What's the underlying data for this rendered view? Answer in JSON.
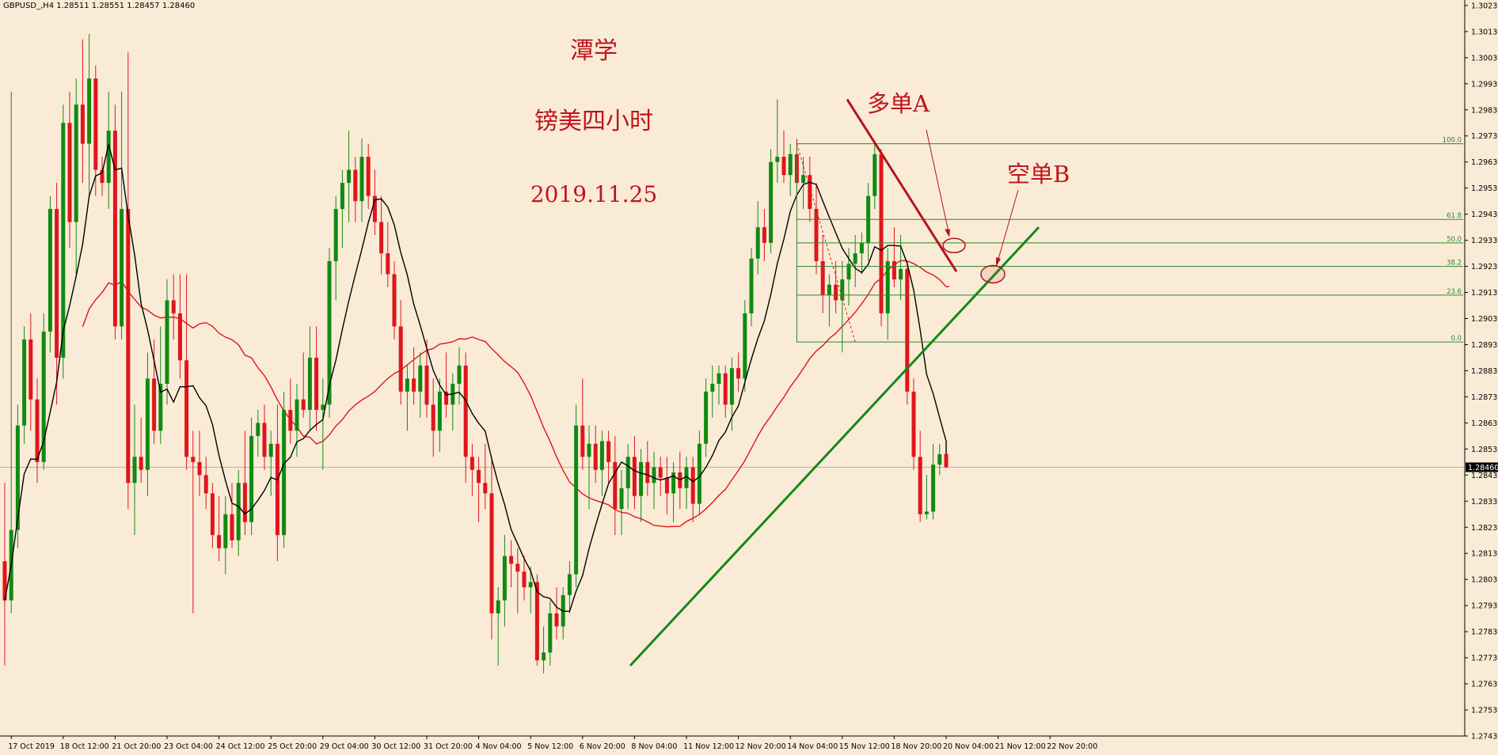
{
  "header": {
    "symbol_info": "GBPUSD_,H4  1.28511 1.28551 1.28457 1.28460"
  },
  "annotations": {
    "author": "潭学",
    "title": "镑美四小时",
    "date": "2019.11.25",
    "label_a": "多单A",
    "label_b": "空单B"
  },
  "colors": {
    "background": "#faebd7",
    "bull_candle": "#118a11",
    "bear_candle": "#e0151b",
    "ma_fast": "#000000",
    "ma_slow": "#e0151b",
    "trendline_up": "#15881b",
    "trendline_down": "#b3141b",
    "fib_lines": "#2a8a2a",
    "price_marker": "#000000"
  },
  "chart_data": {
    "type": "candlestick",
    "instrument": "GBPUSD_",
    "timeframe": "H4",
    "current_price_label": "1.28460",
    "ylim": [
      1.2743,
      1.3023
    ],
    "y_ticks": [
      "1.30230",
      "1.30130",
      "1.30030",
      "1.29930",
      "1.29830",
      "1.29730",
      "1.29630",
      "1.29530",
      "1.29430",
      "1.29330",
      "1.29230",
      "1.29130",
      "1.29030",
      "1.28930",
      "1.28830",
      "1.28730",
      "1.28630",
      "1.28530",
      "1.28430",
      "1.28330",
      "1.28230",
      "1.28130",
      "1.28030",
      "1.27930",
      "1.27830",
      "1.27730",
      "1.27630",
      "1.27530",
      "1.27430"
    ],
    "x_ticks": [
      {
        "label": "17 Oct 2019",
        "bar": 1
      },
      {
        "label": "18 Oct 12:00",
        "bar": 9
      },
      {
        "label": "21 Oct 20:00",
        "bar": 17
      },
      {
        "label": "23 Oct 04:00",
        "bar": 25
      },
      {
        "label": "24 Oct 12:00",
        "bar": 33
      },
      {
        "label": "25 Oct 20:00",
        "bar": 41
      },
      {
        "label": "29 Oct 04:00",
        "bar": 49
      },
      {
        "label": "30 Oct 12:00",
        "bar": 57
      },
      {
        "label": "31 Oct 20:00",
        "bar": 65
      },
      {
        "label": "4 Nov 04:00",
        "bar": 73
      },
      {
        "label": "5 Nov 12:00",
        "bar": 81
      },
      {
        "label": "6 Nov 20:00",
        "bar": 89
      },
      {
        "label": "8 Nov 04:00",
        "bar": 97
      },
      {
        "label": "11 Nov 12:00",
        "bar": 105
      },
      {
        "label": "12 Nov 20:00",
        "bar": 113
      },
      {
        "label": "14 Nov 04:00",
        "bar": 121
      },
      {
        "label": "15 Nov 12:00",
        "bar": 129
      },
      {
        "label": "18 Nov 20:00",
        "bar": 137
      },
      {
        "label": "20 Nov 04:00",
        "bar": 145
      },
      {
        "label": "21 Nov 12:00",
        "bar": 153
      },
      {
        "label": "22 Nov 20:00",
        "bar": 161
      }
    ],
    "candles": [
      {
        "o": 1.281,
        "h": 1.284,
        "l": 1.277,
        "c": 1.2795
      },
      {
        "o": 1.2795,
        "h": 1.299,
        "l": 1.279,
        "c": 1.2822
      },
      {
        "o": 1.2822,
        "h": 1.287,
        "l": 1.2815,
        "c": 1.2862
      },
      {
        "o": 1.2862,
        "h": 1.29,
        "l": 1.2855,
        "c": 1.2895
      },
      {
        "o": 1.2895,
        "h": 1.2905,
        "l": 1.286,
        "c": 1.2872
      },
      {
        "o": 1.2872,
        "h": 1.288,
        "l": 1.284,
        "c": 1.2848
      },
      {
        "o": 1.2848,
        "h": 1.2905,
        "l": 1.2845,
        "c": 1.2898
      },
      {
        "o": 1.2898,
        "h": 1.295,
        "l": 1.289,
        "c": 1.2945
      },
      {
        "o": 1.2945,
        "h": 1.2955,
        "l": 1.287,
        "c": 1.2888
      },
      {
        "o": 1.2888,
        "h": 1.2985,
        "l": 1.288,
        "c": 1.2978
      },
      {
        "o": 1.2978,
        "h": 1.299,
        "l": 1.293,
        "c": 1.294
      },
      {
        "o": 1.294,
        "h": 1.2995,
        "l": 1.292,
        "c": 1.2985
      },
      {
        "o": 1.2985,
        "h": 1.301,
        "l": 1.2955,
        "c": 1.297
      },
      {
        "o": 1.297,
        "h": 1.3012,
        "l": 1.295,
        "c": 1.2995
      },
      {
        "o": 1.2995,
        "h": 1.3,
        "l": 1.295,
        "c": 1.296
      },
      {
        "o": 1.296,
        "h": 1.2965,
        "l": 1.295,
        "c": 1.2955
      },
      {
        "o": 1.2955,
        "h": 1.299,
        "l": 1.2945,
        "c": 1.2975
      },
      {
        "o": 1.2975,
        "h": 1.2985,
        "l": 1.2895,
        "c": 1.29
      },
      {
        "o": 1.29,
        "h": 1.299,
        "l": 1.2895,
        "c": 1.2945
      },
      {
        "o": 1.2945,
        "h": 1.3005,
        "l": 1.283,
        "c": 1.284
      },
      {
        "o": 1.284,
        "h": 1.287,
        "l": 1.282,
        "c": 1.285
      },
      {
        "o": 1.285,
        "h": 1.2865,
        "l": 1.284,
        "c": 1.2845
      },
      {
        "o": 1.2845,
        "h": 1.289,
        "l": 1.2835,
        "c": 1.288
      },
      {
        "o": 1.288,
        "h": 1.2895,
        "l": 1.2855,
        "c": 1.286
      },
      {
        "o": 1.286,
        "h": 1.29,
        "l": 1.2855,
        "c": 1.2878
      },
      {
        "o": 1.2878,
        "h": 1.2918,
        "l": 1.287,
        "c": 1.291
      },
      {
        "o": 1.291,
        "h": 1.292,
        "l": 1.2895,
        "c": 1.2905
      },
      {
        "o": 1.2905,
        "h": 1.292,
        "l": 1.288,
        "c": 1.2887
      },
      {
        "o": 1.2887,
        "h": 1.292,
        "l": 1.2845,
        "c": 1.285
      },
      {
        "o": 1.285,
        "h": 1.286,
        "l": 1.279,
        "c": 1.2848
      },
      {
        "o": 1.2848,
        "h": 1.286,
        "l": 1.2835,
        "c": 1.2843
      },
      {
        "o": 1.2843,
        "h": 1.285,
        "l": 1.283,
        "c": 1.2836
      },
      {
        "o": 1.2836,
        "h": 1.284,
        "l": 1.2815,
        "c": 1.282
      },
      {
        "o": 1.282,
        "h": 1.2835,
        "l": 1.281,
        "c": 1.2815
      },
      {
        "o": 1.2815,
        "h": 1.2835,
        "l": 1.2805,
        "c": 1.2828
      },
      {
        "o": 1.2828,
        "h": 1.284,
        "l": 1.2815,
        "c": 1.2818
      },
      {
        "o": 1.2818,
        "h": 1.2845,
        "l": 1.2812,
        "c": 1.284
      },
      {
        "o": 1.284,
        "h": 1.286,
        "l": 1.282,
        "c": 1.2825
      },
      {
        "o": 1.2825,
        "h": 1.2865,
        "l": 1.282,
        "c": 1.2858
      },
      {
        "o": 1.2858,
        "h": 1.2868,
        "l": 1.285,
        "c": 1.2863
      },
      {
        "o": 1.2863,
        "h": 1.287,
        "l": 1.2845,
        "c": 1.285
      },
      {
        "o": 1.285,
        "h": 1.286,
        "l": 1.2835,
        "c": 1.2855
      },
      {
        "o": 1.2855,
        "h": 1.287,
        "l": 1.281,
        "c": 1.282
      },
      {
        "o": 1.282,
        "h": 1.2875,
        "l": 1.2815,
        "c": 1.2868
      },
      {
        "o": 1.2868,
        "h": 1.288,
        "l": 1.2855,
        "c": 1.286
      },
      {
        "o": 1.286,
        "h": 1.2878,
        "l": 1.285,
        "c": 1.2872
      },
      {
        "o": 1.2872,
        "h": 1.289,
        "l": 1.2865,
        "c": 1.2868
      },
      {
        "o": 1.2868,
        "h": 1.29,
        "l": 1.286,
        "c": 1.2888
      },
      {
        "o": 1.2888,
        "h": 1.29,
        "l": 1.286,
        "c": 1.2868
      },
      {
        "o": 1.2868,
        "h": 1.288,
        "l": 1.2845,
        "c": 1.287
      },
      {
        "o": 1.287,
        "h": 1.293,
        "l": 1.2865,
        "c": 1.2925
      },
      {
        "o": 1.2925,
        "h": 1.295,
        "l": 1.291,
        "c": 1.2945
      },
      {
        "o": 1.2945,
        "h": 1.296,
        "l": 1.293,
        "c": 1.2955
      },
      {
        "o": 1.2955,
        "h": 1.2975,
        "l": 1.294,
        "c": 1.296
      },
      {
        "o": 1.296,
        "h": 1.2965,
        "l": 1.294,
        "c": 1.2948
      },
      {
        "o": 1.2948,
        "h": 1.2972,
        "l": 1.294,
        "c": 1.2965
      },
      {
        "o": 1.2965,
        "h": 1.297,
        "l": 1.2945,
        "c": 1.295
      },
      {
        "o": 1.295,
        "h": 1.296,
        "l": 1.2935,
        "c": 1.294
      },
      {
        "o": 1.294,
        "h": 1.295,
        "l": 1.292,
        "c": 1.2928
      },
      {
        "o": 1.2928,
        "h": 1.294,
        "l": 1.2915,
        "c": 1.292
      },
      {
        "o": 1.292,
        "h": 1.2925,
        "l": 1.2895,
        "c": 1.29
      },
      {
        "o": 1.29,
        "h": 1.291,
        "l": 1.287,
        "c": 1.2875
      },
      {
        "o": 1.2875,
        "h": 1.2885,
        "l": 1.286,
        "c": 1.288
      },
      {
        "o": 1.288,
        "h": 1.2892,
        "l": 1.287,
        "c": 1.2875
      },
      {
        "o": 1.2875,
        "h": 1.289,
        "l": 1.2865,
        "c": 1.2885
      },
      {
        "o": 1.2885,
        "h": 1.2895,
        "l": 1.2865,
        "c": 1.287
      },
      {
        "o": 1.287,
        "h": 1.288,
        "l": 1.285,
        "c": 1.286
      },
      {
        "o": 1.286,
        "h": 1.288,
        "l": 1.2852,
        "c": 1.2875
      },
      {
        "o": 1.2875,
        "h": 1.289,
        "l": 1.2865,
        "c": 1.287
      },
      {
        "o": 1.287,
        "h": 1.2882,
        "l": 1.286,
        "c": 1.2878
      },
      {
        "o": 1.2878,
        "h": 1.2892,
        "l": 1.287,
        "c": 1.2885
      },
      {
        "o": 1.2885,
        "h": 1.289,
        "l": 1.284,
        "c": 1.285
      },
      {
        "o": 1.285,
        "h": 1.2855,
        "l": 1.2835,
        "c": 1.2845
      },
      {
        "o": 1.2845,
        "h": 1.285,
        "l": 1.2825,
        "c": 1.284
      },
      {
        "o": 1.284,
        "h": 1.2855,
        "l": 1.283,
        "c": 1.2836
      },
      {
        "o": 1.2836,
        "h": 1.285,
        "l": 1.278,
        "c": 1.279
      },
      {
        "o": 1.279,
        "h": 1.28,
        "l": 1.277,
        "c": 1.2795
      },
      {
        "o": 1.2795,
        "h": 1.282,
        "l": 1.2785,
        "c": 1.2812
      },
      {
        "o": 1.2812,
        "h": 1.2818,
        "l": 1.28,
        "c": 1.2809
      },
      {
        "o": 1.2809,
        "h": 1.2815,
        "l": 1.279,
        "c": 1.2806
      },
      {
        "o": 1.2806,
        "h": 1.2812,
        "l": 1.2795,
        "c": 1.28
      },
      {
        "o": 1.28,
        "h": 1.2808,
        "l": 1.279,
        "c": 1.2802
      },
      {
        "o": 1.2802,
        "h": 1.2805,
        "l": 1.277,
        "c": 1.2772
      },
      {
        "o": 1.2772,
        "h": 1.2785,
        "l": 1.2767,
        "c": 1.2775
      },
      {
        "o": 1.2775,
        "h": 1.2795,
        "l": 1.277,
        "c": 1.279
      },
      {
        "o": 1.279,
        "h": 1.28,
        "l": 1.278,
        "c": 1.2785
      },
      {
        "o": 1.2785,
        "h": 1.28,
        "l": 1.278,
        "c": 1.2797
      },
      {
        "o": 1.2797,
        "h": 1.281,
        "l": 1.279,
        "c": 1.2805
      },
      {
        "o": 1.2805,
        "h": 1.287,
        "l": 1.28,
        "c": 1.2862
      },
      {
        "o": 1.2862,
        "h": 1.288,
        "l": 1.2845,
        "c": 1.285
      },
      {
        "o": 1.285,
        "h": 1.2862,
        "l": 1.283,
        "c": 1.2855
      },
      {
        "o": 1.2855,
        "h": 1.2862,
        "l": 1.284,
        "c": 1.2845
      },
      {
        "o": 1.2845,
        "h": 1.286,
        "l": 1.2835,
        "c": 1.2856
      },
      {
        "o": 1.2856,
        "h": 1.286,
        "l": 1.284,
        "c": 1.2848
      },
      {
        "o": 1.2848,
        "h": 1.2858,
        "l": 1.282,
        "c": 1.283
      },
      {
        "o": 1.283,
        "h": 1.2845,
        "l": 1.282,
        "c": 1.2838
      },
      {
        "o": 1.2838,
        "h": 1.2855,
        "l": 1.283,
        "c": 1.285
      },
      {
        "o": 1.285,
        "h": 1.2858,
        "l": 1.283,
        "c": 1.2835
      },
      {
        "o": 1.2835,
        "h": 1.2853,
        "l": 1.2825,
        "c": 1.2848
      },
      {
        "o": 1.2848,
        "h": 1.2856,
        "l": 1.2835,
        "c": 1.284
      },
      {
        "o": 1.284,
        "h": 1.2852,
        "l": 1.283,
        "c": 1.2846
      },
      {
        "o": 1.2846,
        "h": 1.285,
        "l": 1.2835,
        "c": 1.2842
      },
      {
        "o": 1.2842,
        "h": 1.285,
        "l": 1.2828,
        "c": 1.2836
      },
      {
        "o": 1.2836,
        "h": 1.2848,
        "l": 1.2825,
        "c": 1.2844
      },
      {
        "o": 1.2844,
        "h": 1.2852,
        "l": 1.283,
        "c": 1.2838
      },
      {
        "o": 1.2838,
        "h": 1.285,
        "l": 1.283,
        "c": 1.2846
      },
      {
        "o": 1.2846,
        "h": 1.285,
        "l": 1.2825,
        "c": 1.2832
      },
      {
        "o": 1.2832,
        "h": 1.286,
        "l": 1.2828,
        "c": 1.2855
      },
      {
        "o": 1.2855,
        "h": 1.288,
        "l": 1.285,
        "c": 1.2875
      },
      {
        "o": 1.2875,
        "h": 1.2885,
        "l": 1.2865,
        "c": 1.2878
      },
      {
        "o": 1.2878,
        "h": 1.2885,
        "l": 1.287,
        "c": 1.2882
      },
      {
        "o": 1.2882,
        "h": 1.2885,
        "l": 1.2865,
        "c": 1.287
      },
      {
        "o": 1.287,
        "h": 1.2888,
        "l": 1.286,
        "c": 1.2884
      },
      {
        "o": 1.2884,
        "h": 1.289,
        "l": 1.2875,
        "c": 1.288
      },
      {
        "o": 1.288,
        "h": 1.291,
        "l": 1.2875,
        "c": 1.2905
      },
      {
        "o": 1.2905,
        "h": 1.293,
        "l": 1.29,
        "c": 1.2926
      },
      {
        "o": 1.2926,
        "h": 1.2948,
        "l": 1.292,
        "c": 1.2938
      },
      {
        "o": 1.2938,
        "h": 1.2945,
        "l": 1.2925,
        "c": 1.2932
      },
      {
        "o": 1.2932,
        "h": 1.2968,
        "l": 1.2928,
        "c": 1.2963
      },
      {
        "o": 1.2963,
        "h": 1.2987,
        "l": 1.2955,
        "c": 1.2965
      },
      {
        "o": 1.2965,
        "h": 1.2975,
        "l": 1.2955,
        "c": 1.2958
      },
      {
        "o": 1.2958,
        "h": 1.297,
        "l": 1.295,
        "c": 1.2966
      },
      {
        "o": 1.2966,
        "h": 1.2972,
        "l": 1.295,
        "c": 1.2955
      },
      {
        "o": 1.2955,
        "h": 1.2965,
        "l": 1.2945,
        "c": 1.2958
      },
      {
        "o": 1.2958,
        "h": 1.2965,
        "l": 1.294,
        "c": 1.2945
      },
      {
        "o": 1.2945,
        "h": 1.2955,
        "l": 1.292,
        "c": 1.2925
      },
      {
        "o": 1.2925,
        "h": 1.2935,
        "l": 1.2905,
        "c": 1.2912
      },
      {
        "o": 1.2912,
        "h": 1.292,
        "l": 1.29,
        "c": 1.2916
      },
      {
        "o": 1.2916,
        "h": 1.2925,
        "l": 1.2905,
        "c": 1.291
      },
      {
        "o": 1.291,
        "h": 1.2925,
        "l": 1.289,
        "c": 1.2918
      },
      {
        "o": 1.2918,
        "h": 1.293,
        "l": 1.2908,
        "c": 1.2924
      },
      {
        "o": 1.2924,
        "h": 1.2935,
        "l": 1.2915,
        "c": 1.2928
      },
      {
        "o": 1.2928,
        "h": 1.2936,
        "l": 1.292,
        "c": 1.2932
      },
      {
        "o": 1.2932,
        "h": 1.2955,
        "l": 1.2925,
        "c": 1.295
      },
      {
        "o": 1.295,
        "h": 1.297,
        "l": 1.2945,
        "c": 1.2966
      },
      {
        "o": 1.2966,
        "h": 1.2968,
        "l": 1.29,
        "c": 1.2905
      },
      {
        "o": 1.2905,
        "h": 1.293,
        "l": 1.2895,
        "c": 1.2925
      },
      {
        "o": 1.2925,
        "h": 1.2938,
        "l": 1.2915,
        "c": 1.2918
      },
      {
        "o": 1.2918,
        "h": 1.2935,
        "l": 1.291,
        "c": 1.2922
      },
      {
        "o": 1.2922,
        "h": 1.2925,
        "l": 1.287,
        "c": 1.2875
      },
      {
        "o": 1.2875,
        "h": 1.288,
        "l": 1.2845,
        "c": 1.285
      },
      {
        "o": 1.285,
        "h": 1.286,
        "l": 1.2825,
        "c": 1.2828
      },
      {
        "o": 1.2828,
        "h": 1.2843,
        "l": 1.2826,
        "c": 1.2829
      },
      {
        "o": 1.2829,
        "h": 1.2855,
        "l": 1.2826,
        "c": 1.2847
      },
      {
        "o": 1.2847,
        "h": 1.2855,
        "l": 1.2843,
        "c": 1.2851
      },
      {
        "o": 1.28511,
        "h": 1.28551,
        "l": 1.28457,
        "c": 1.2846
      }
    ],
    "fibonacci": {
      "levels": [
        {
          "label": "100.0",
          "price": 1.297
        },
        {
          "label": "61.8",
          "price": 1.2941
        },
        {
          "label": "50.0",
          "price": 1.2932
        },
        {
          "label": "38.2",
          "price": 1.2923
        },
        {
          "label": "23.6",
          "price": 1.2912
        },
        {
          "label": "0.0",
          "price": 1.2894
        }
      ]
    }
  }
}
